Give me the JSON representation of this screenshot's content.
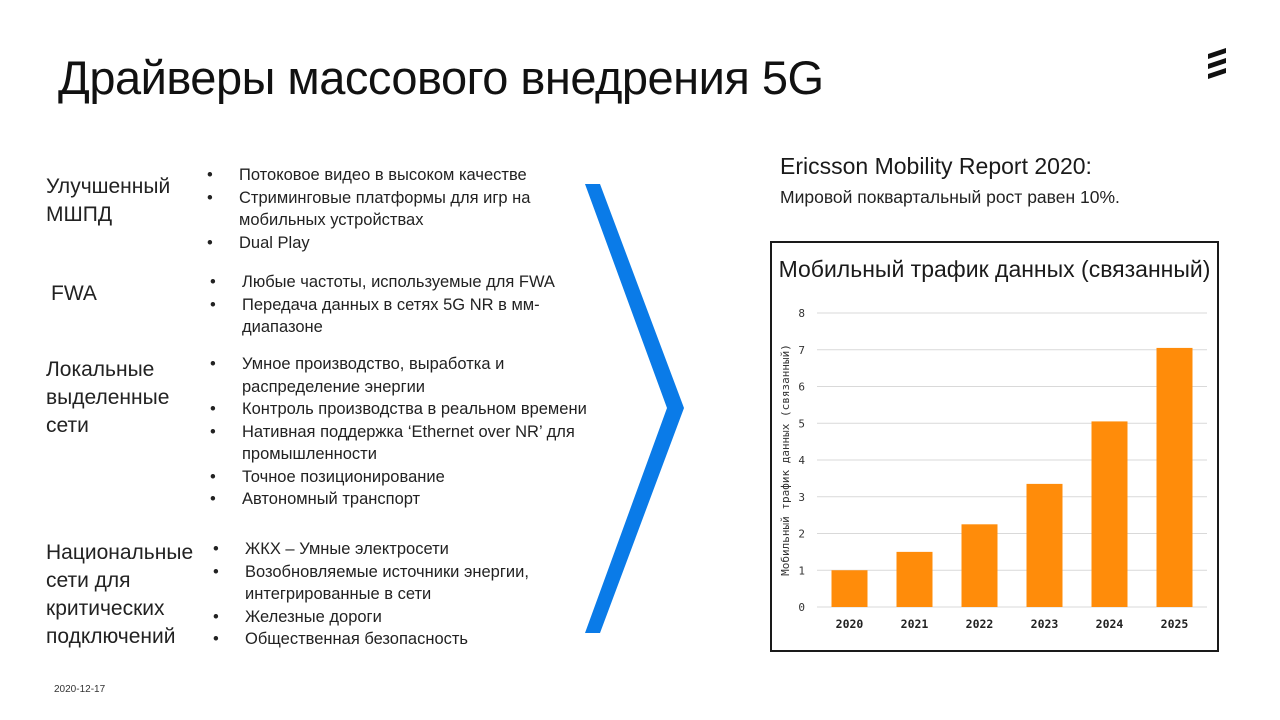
{
  "slide": {
    "title": "Драйверы массового внедрения 5G",
    "date": "2020-12-17",
    "accent_color": "#0a7be8",
    "logo_icon": "ericsson-logo-icon"
  },
  "categories": [
    {
      "name_lines": [
        "Улучшенный",
        "МШПД"
      ],
      "bullets": [
        "Потоковое видео в высоком качестве",
        "Стриминговые платформы для игр на мобильных устройствах",
        "Dual Play"
      ]
    },
    {
      "name_lines": [
        "FWA"
      ],
      "bullets": [
        "Любые частоты, используемые для FWA",
        "Передача данных в сетях 5G NR в мм-диапазоне"
      ]
    },
    {
      "name_lines": [
        "Локальные",
        "выделенные",
        "сети"
      ],
      "bullets": [
        "Умное производство, выработка и распределение энергии",
        "Контроль производства в реальном времени",
        "Нативная поддержка  ‘Ethernet over NR’ для промышленности",
        "Точное позиционирование",
        "Автономный транспорт"
      ]
    },
    {
      "name_lines": [
        "Национальные",
        "сети для",
        "критических",
        "подключений"
      ],
      "bullets": [
        "ЖКХ – Умные электросети",
        "Возобновляемые источники энергии, интегрированные в сети",
        "Железные дороги",
        "Общественная безопасность"
      ]
    }
  ],
  "report": {
    "title": "Ericsson Mobility Report 2020:",
    "subtitle": "Мировой поквартальный рост равен 10%."
  },
  "chart_data": {
    "type": "bar",
    "title": "Мобильный трафик данных (связанный)",
    "ylabel": "Мобильный трафик данных (связанный)",
    "xlabel": "",
    "categories": [
      "2020",
      "2021",
      "2022",
      "2023",
      "2024",
      "2025"
    ],
    "values": [
      1.0,
      1.5,
      2.25,
      3.35,
      5.05,
      7.05
    ],
    "ylim": [
      0,
      8
    ],
    "yticks": [
      "0",
      "1",
      "2",
      "3",
      "4",
      "5",
      "6",
      "7",
      "8"
    ],
    "grid": true,
    "bar_color": "#ff8c0a",
    "grid_color": "#d9d9d9"
  }
}
